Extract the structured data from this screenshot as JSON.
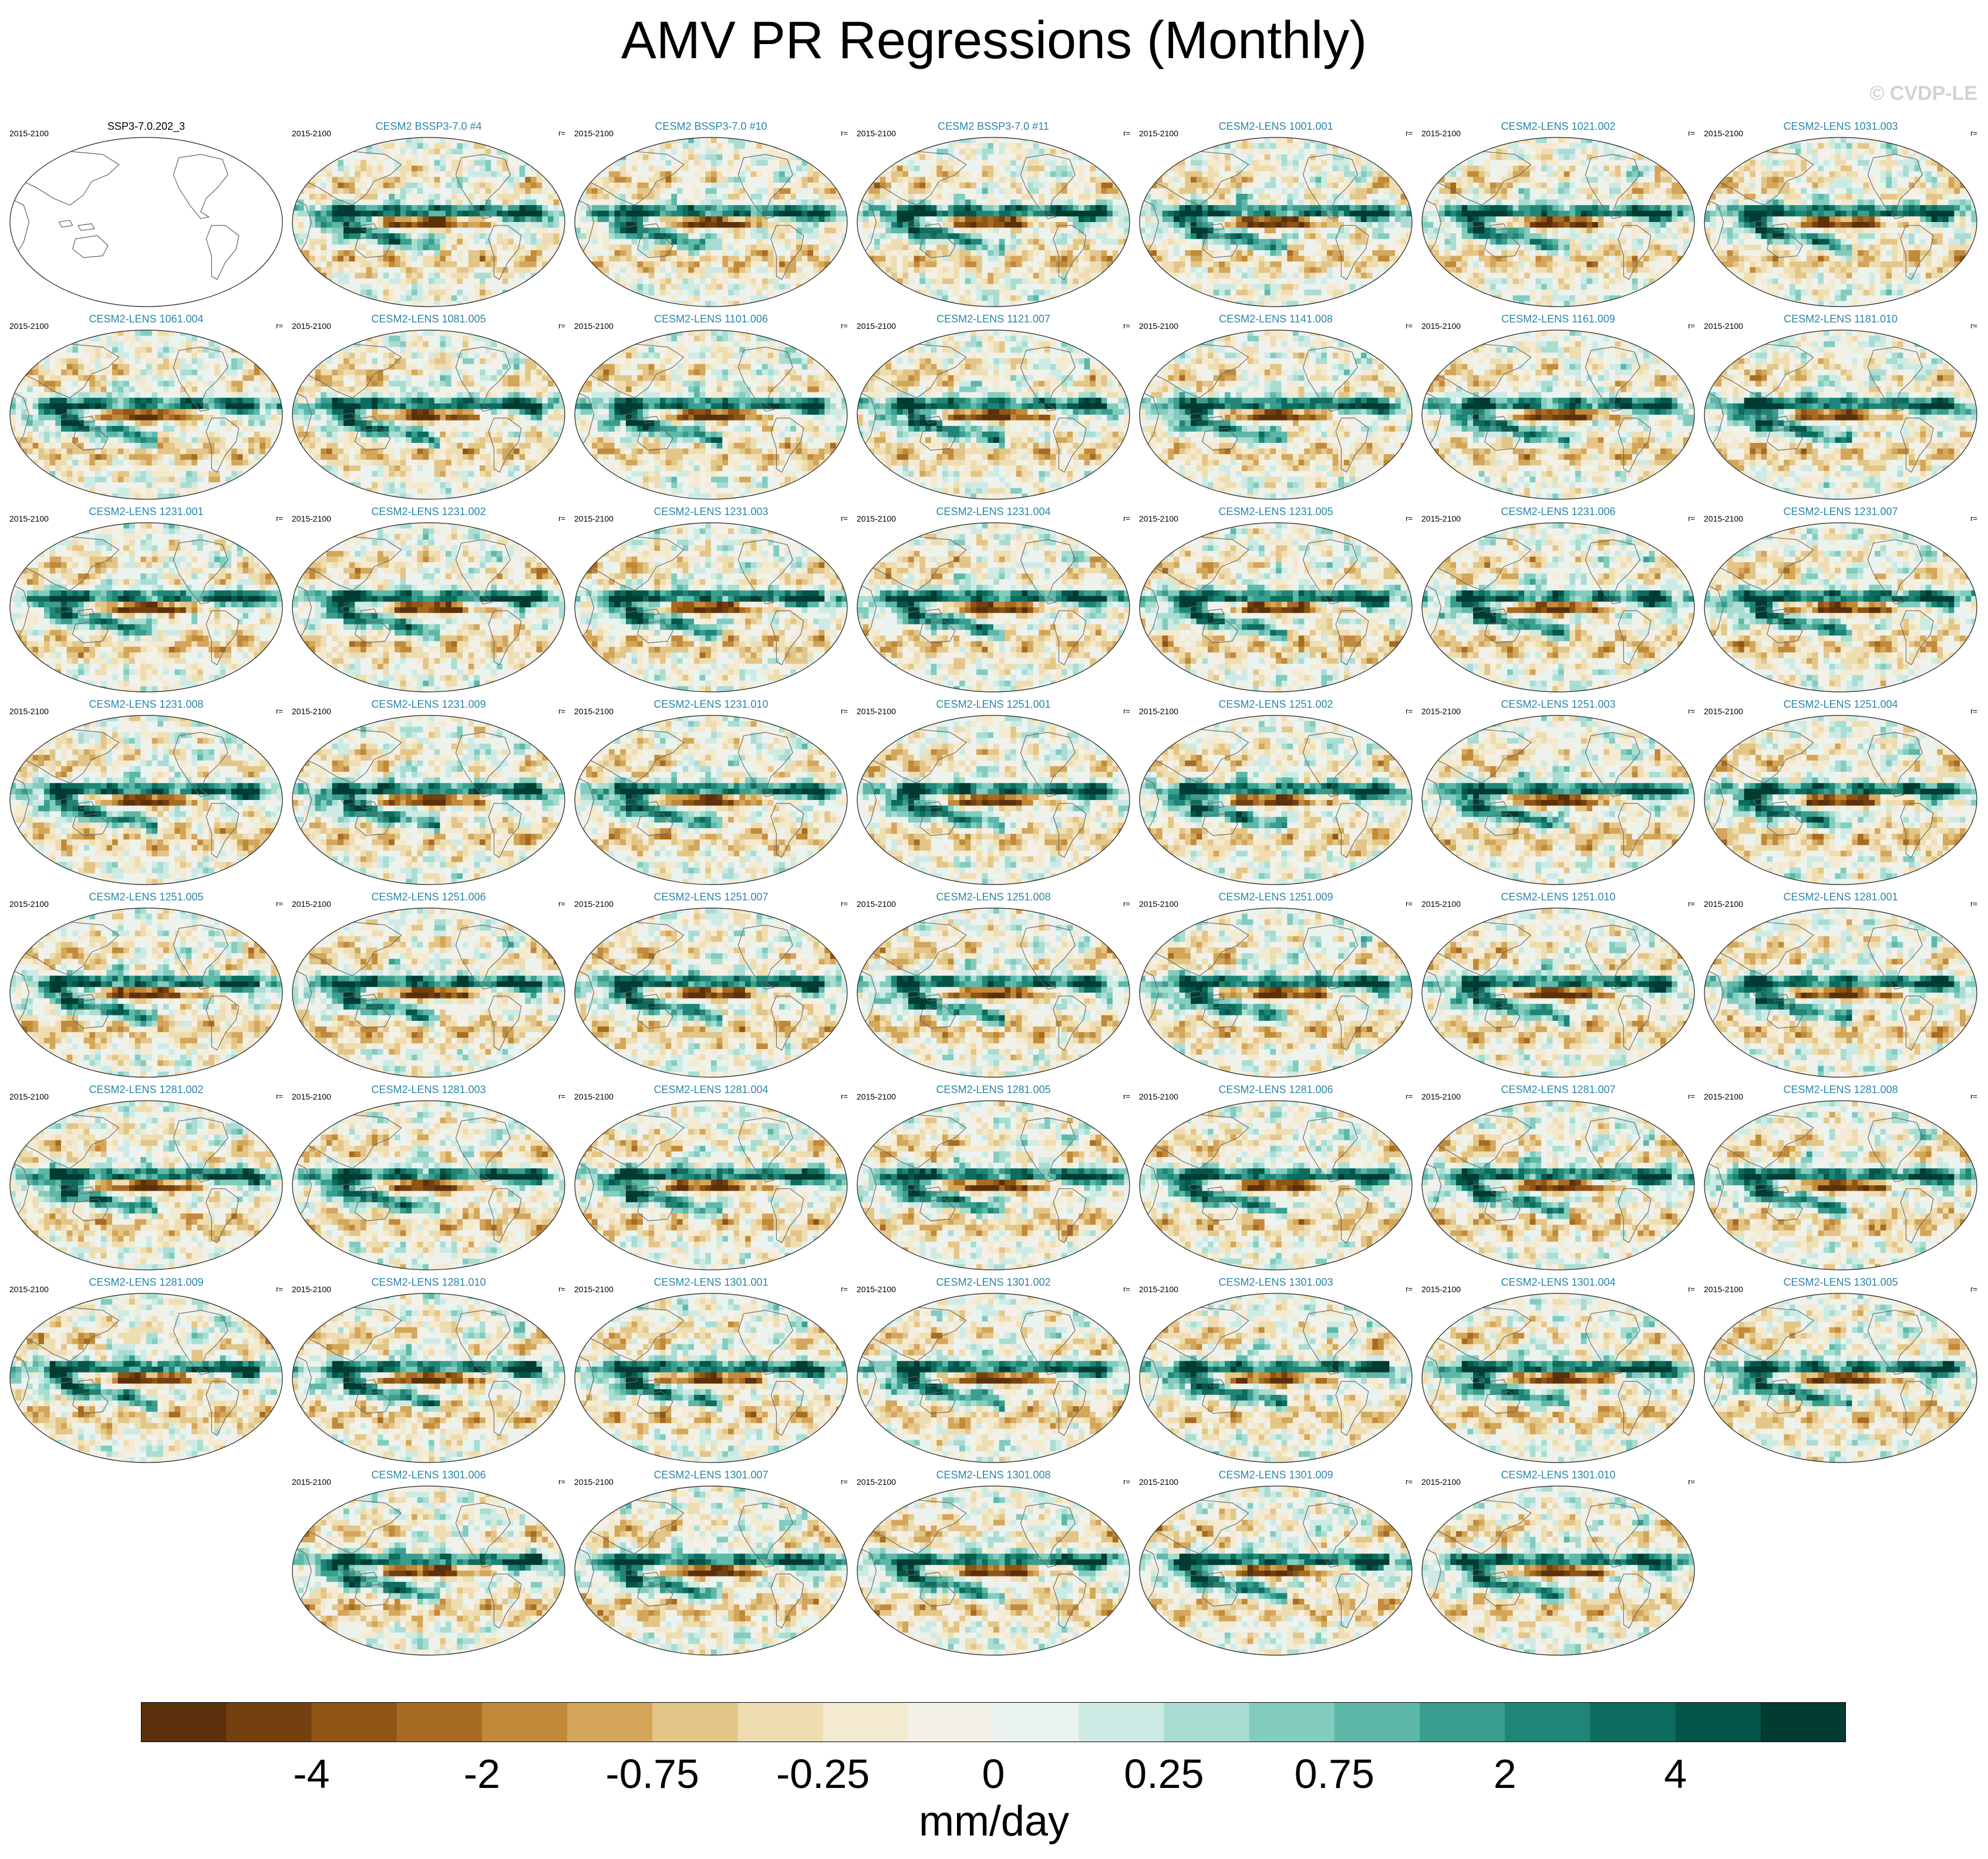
{
  "title": "AMV PR Regressions (Monthly)",
  "copyright": "© CVDP-LE",
  "chart_data": {
    "type": "heatmap",
    "title": "AMV PR Regressions (Monthly)",
    "variable": "PR",
    "units": "mm/day",
    "colorbar": {
      "tick_labels": [
        "-4",
        "-2",
        "-0.75",
        "-0.25",
        "0",
        "0.25",
        "0.75",
        "2",
        "4"
      ],
      "tick_bin_index": [
        2,
        4,
        6,
        8,
        10,
        12,
        14,
        16,
        18
      ],
      "bin_colors": [
        "#5c300b",
        "#74400f",
        "#8f5514",
        "#a86b22",
        "#c18a3a",
        "#d3a65a",
        "#e3c687",
        "#eeddb0",
        "#f4ead0",
        "#f3f0e8",
        "#e9f3f0",
        "#cdebe4",
        "#a9ddd2",
        "#82ccbe",
        "#5db8a8",
        "#3a9e8f",
        "#1f8677",
        "#0c6c5e",
        "#04564a",
        "#013b31"
      ]
    },
    "panels": [
      {
        "name": "SSP3-7.0.202_3",
        "years": "2015-2100",
        "r": "",
        "observation": true
      },
      {
        "name": "CESM2 BSSP3-7.0 #4",
        "years": "2015-2100",
        "r": "r="
      },
      {
        "name": "CESM2 BSSP3-7.0 #10",
        "years": "2015-2100",
        "r": "r="
      },
      {
        "name": "CESM2 BSSP3-7.0 #11",
        "years": "2015-2100",
        "r": "r="
      },
      {
        "name": "CESM2-LENS 1001.001",
        "years": "2015-2100",
        "r": "r="
      },
      {
        "name": "CESM2-LENS 1021.002",
        "years": "2015-2100",
        "r": "r="
      },
      {
        "name": "CESM2-LENS 1031.003",
        "years": "2015-2100",
        "r": "r="
      },
      {
        "name": "CESM2-LENS 1061.004",
        "years": "2015-2100",
        "r": "r="
      },
      {
        "name": "CESM2-LENS 1081.005",
        "years": "2015-2100",
        "r": "r="
      },
      {
        "name": "CESM2-LENS 1101.006",
        "years": "2015-2100",
        "r": "r="
      },
      {
        "name": "CESM2-LENS 1121.007",
        "years": "2015-2100",
        "r": "r="
      },
      {
        "name": "CESM2-LENS 1141.008",
        "years": "2015-2100",
        "r": "r="
      },
      {
        "name": "CESM2-LENS 1161.009",
        "years": "2015-2100",
        "r": "r="
      },
      {
        "name": "CESM2-LENS 1181.010",
        "years": "2015-2100",
        "r": "r="
      },
      {
        "name": "CESM2-LENS 1231.001",
        "years": "2015-2100",
        "r": "r="
      },
      {
        "name": "CESM2-LENS 1231.002",
        "years": "2015-2100",
        "r": "r="
      },
      {
        "name": "CESM2-LENS 1231.003",
        "years": "2015-2100",
        "r": "r="
      },
      {
        "name": "CESM2-LENS 1231.004",
        "years": "2015-2100",
        "r": "r="
      },
      {
        "name": "CESM2-LENS 1231.005",
        "years": "2015-2100",
        "r": "r="
      },
      {
        "name": "CESM2-LENS 1231.006",
        "years": "2015-2100",
        "r": "r="
      },
      {
        "name": "CESM2-LENS 1231.007",
        "years": "2015-2100",
        "r": "r="
      },
      {
        "name": "CESM2-LENS 1231.008",
        "years": "2015-2100",
        "r": "r="
      },
      {
        "name": "CESM2-LENS 1231.009",
        "years": "2015-2100",
        "r": "r="
      },
      {
        "name": "CESM2-LENS 1231.010",
        "years": "2015-2100",
        "r": "r="
      },
      {
        "name": "CESM2-LENS 1251.001",
        "years": "2015-2100",
        "r": "r="
      },
      {
        "name": "CESM2-LENS 1251.002",
        "years": "2015-2100",
        "r": "r="
      },
      {
        "name": "CESM2-LENS 1251.003",
        "years": "2015-2100",
        "r": "r="
      },
      {
        "name": "CESM2-LENS 1251.004",
        "years": "2015-2100",
        "r": "r="
      },
      {
        "name": "CESM2-LENS 1251.005",
        "years": "2015-2100",
        "r": "r="
      },
      {
        "name": "CESM2-LENS 1251.006",
        "years": "2015-2100",
        "r": "r="
      },
      {
        "name": "CESM2-LENS 1251.007",
        "years": "2015-2100",
        "r": "r="
      },
      {
        "name": "CESM2-LENS 1251.008",
        "years": "2015-2100",
        "r": "r="
      },
      {
        "name": "CESM2-LENS 1251.009",
        "years": "2015-2100",
        "r": "r="
      },
      {
        "name": "CESM2-LENS 1251.010",
        "years": "2015-2100",
        "r": "r="
      },
      {
        "name": "CESM2-LENS 1281.001",
        "years": "2015-2100",
        "r": "r="
      },
      {
        "name": "CESM2-LENS 1281.002",
        "years": "2015-2100",
        "r": "r="
      },
      {
        "name": "CESM2-LENS 1281.003",
        "years": "2015-2100",
        "r": "r="
      },
      {
        "name": "CESM2-LENS 1281.004",
        "years": "2015-2100",
        "r": "r="
      },
      {
        "name": "CESM2-LENS 1281.005",
        "years": "2015-2100",
        "r": "r="
      },
      {
        "name": "CESM2-LENS 1281.006",
        "years": "2015-2100",
        "r": "r="
      },
      {
        "name": "CESM2-LENS 1281.007",
        "years": "2015-2100",
        "r": "r="
      },
      {
        "name": "CESM2-LENS 1281.008",
        "years": "2015-2100",
        "r": "r="
      },
      {
        "name": "CESM2-LENS 1281.009",
        "years": "2015-2100",
        "r": "r="
      },
      {
        "name": "CESM2-LENS 1281.010",
        "years": "2015-2100",
        "r": "r="
      },
      {
        "name": "CESM2-LENS 1301.001",
        "years": "2015-2100",
        "r": "r="
      },
      {
        "name": "CESM2-LENS 1301.002",
        "years": "2015-2100",
        "r": "r="
      },
      {
        "name": "CESM2-LENS 1301.003",
        "years": "2015-2100",
        "r": "r="
      },
      {
        "name": "CESM2-LENS 1301.004",
        "years": "2015-2100",
        "r": "r="
      },
      {
        "name": "CESM2-LENS 1301.005",
        "years": "2015-2100",
        "r": "r="
      },
      {
        "name": "CESM2-LENS 1301.006",
        "years": "2015-2100",
        "r": "r="
      },
      {
        "name": "CESM2-LENS 1301.007",
        "years": "2015-2100",
        "r": "r="
      },
      {
        "name": "CESM2-LENS 1301.008",
        "years": "2015-2100",
        "r": "r="
      },
      {
        "name": "CESM2-LENS 1301.009",
        "years": "2015-2100",
        "r": "r="
      },
      {
        "name": "CESM2-LENS 1301.010",
        "years": "2015-2100",
        "r": "r="
      }
    ]
  }
}
